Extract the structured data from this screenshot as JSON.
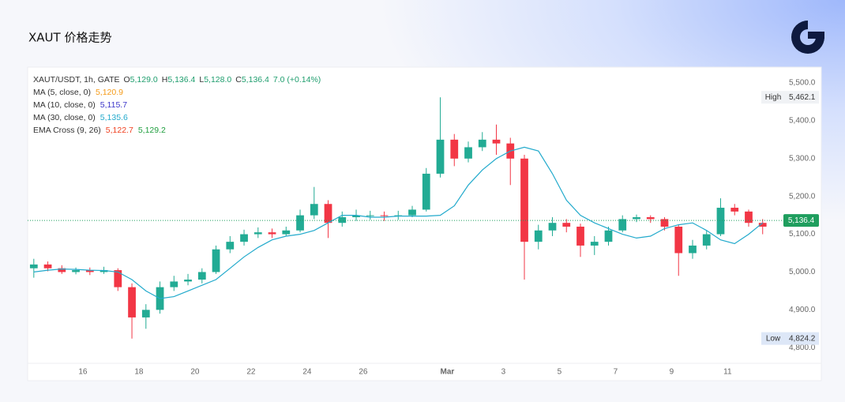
{
  "header": {
    "title": "XAUT 价格走势"
  },
  "chart_data": {
    "type": "candlestick",
    "legend": {
      "symbol": "XAUT/USDT, 1h, GATE",
      "ohlc": [
        {
          "key": "O",
          "value": "5,129.0"
        },
        {
          "key": "H",
          "value": "5,136.4"
        },
        {
          "key": "L",
          "value": "5,128.0"
        },
        {
          "key": "C",
          "value": "5,136.4"
        }
      ],
      "change": "7.0 (+0.14%)",
      "value_color": "#1f9e6e",
      "indicators": [
        {
          "name": "MA (5, close, 0)",
          "values": [
            {
              "text": "5,120.9",
              "color": "#f59a16"
            }
          ]
        },
        {
          "name": "MA (10, close, 0)",
          "values": [
            {
              "text": "5,115.7",
              "color": "#3b35c9"
            }
          ]
        },
        {
          "name": "MA (30, close, 0)",
          "values": [
            {
              "text": "5,135.6",
              "color": "#22aacc"
            }
          ]
        },
        {
          "name": "EMA Cross (9, 26)",
          "values": [
            {
              "text": "5,122.7",
              "color": "#f04020"
            },
            {
              "text": "5,129.2",
              "color": "#1f9e3e"
            }
          ]
        }
      ]
    },
    "x": [
      -1.75,
      -1.25,
      -0.75,
      -0.25,
      0.25,
      0.75,
      1.25,
      1.75,
      2.25,
      2.75,
      3.25,
      3.75,
      4.25,
      4.75,
      5.25,
      5.75,
      6.25,
      6.75,
      7.25,
      7.75,
      8.25,
      8.75,
      9.25,
      9.75,
      10.25,
      10.75,
      11.25,
      11.75,
      12.25,
      12.75,
      13.25,
      13.75,
      14.25,
      14.75,
      15.25,
      15.75,
      16.25,
      16.75,
      17.25,
      17.75,
      18.25,
      18.75,
      19.25,
      19.75,
      20.25,
      20.75,
      21.25,
      21.75,
      22.25,
      22.75,
      23.25,
      23.75,
      24.25
    ],
    "open": [
      5010,
      5020,
      5010,
      5000,
      5005,
      5000,
      5005,
      4960,
      4880,
      4900,
      4960,
      4975,
      4980,
      5000,
      5060,
      5080,
      5100,
      5105,
      5100,
      5110,
      5150,
      5180,
      5130,
      5145,
      5150,
      5150,
      5148,
      5150,
      5165,
      5260,
      5350,
      5300,
      5330,
      5350,
      5340,
      5300,
      5080,
      5110,
      5130,
      5120,
      5070,
      5080,
      5110,
      5140,
      5145,
      5140,
      5120,
      5050,
      5070,
      5100,
      5170,
      5160,
      5130
    ],
    "high": [
      5035,
      5028,
      5018,
      5012,
      5012,
      5014,
      5010,
      4970,
      4915,
      4975,
      4990,
      4995,
      5010,
      5070,
      5095,
      5112,
      5118,
      5115,
      5120,
      5165,
      5225,
      5190,
      5160,
      5165,
      5162,
      5160,
      5162,
      5175,
      5275,
      5462,
      5365,
      5345,
      5370,
      5390,
      5355,
      5310,
      5125,
      5145,
      5140,
      5128,
      5095,
      5120,
      5150,
      5152,
      5150,
      5145,
      5125,
      5085,
      5110,
      5195,
      5180,
      5165,
      5140
    ],
    "low": [
      4985,
      5002,
      4995,
      4994,
      4992,
      4995,
      4950,
      4824,
      4850,
      4890,
      4950,
      4965,
      4970,
      4995,
      5050,
      5070,
      5090,
      5090,
      5095,
      5105,
      5140,
      5090,
      5120,
      5135,
      5138,
      5135,
      5138,
      5145,
      5160,
      5250,
      5280,
      5290,
      5320,
      5310,
      5230,
      4980,
      5060,
      5095,
      5105,
      5040,
      5045,
      5070,
      5105,
      5132,
      5130,
      5110,
      4990,
      5035,
      5060,
      5095,
      5150,
      5120,
      5100
    ],
    "close": [
      5020,
      5010,
      5000,
      5005,
      5000,
      5005,
      4960,
      4880,
      4900,
      4960,
      4975,
      4980,
      5000,
      5060,
      5080,
      5100,
      5105,
      5100,
      5110,
      5150,
      5180,
      5130,
      5145,
      5150,
      5150,
      5148,
      5150,
      5165,
      5260,
      5350,
      5300,
      5330,
      5350,
      5340,
      5300,
      5080,
      5110,
      5130,
      5120,
      5070,
      5080,
      5110,
      5140,
      5145,
      5140,
      5120,
      5050,
      5070,
      5100,
      5170,
      5160,
      5130,
      5120
    ],
    "up_color": "#22ab94",
    "down_color": "#f23645",
    "lines": [
      {
        "color": "#22aacc",
        "values": [
          5000,
          5005,
          5008,
          5007,
          5005,
          5004,
          5000,
          4980,
          4950,
          4930,
          4935,
          4950,
          4965,
          4980,
          5010,
          5040,
          5065,
          5085,
          5095,
          5100,
          5110,
          5130,
          5150,
          5150,
          5145,
          5145,
          5148,
          5148,
          5148,
          5150,
          5175,
          5230,
          5270,
          5300,
          5320,
          5330,
          5320,
          5260,
          5190,
          5150,
          5130,
          5115,
          5100,
          5090,
          5095,
          5115,
          5125,
          5130,
          5110,
          5085,
          5075,
          5100,
          5130
        ]
      }
    ],
    "xlim": [
      -1.97,
      24.99
    ],
    "ylim": [
      4758.7,
      5541.8
    ],
    "xticks": [
      {
        "value": 0,
        "label": "16"
      },
      {
        "value": 2,
        "label": "18"
      },
      {
        "value": 4,
        "label": "20"
      },
      {
        "value": 6,
        "label": "22"
      },
      {
        "value": 8,
        "label": "24"
      },
      {
        "value": 10,
        "label": "26"
      },
      {
        "value": 13,
        "label": "Mar"
      },
      {
        "value": 15,
        "label": "3"
      },
      {
        "value": 17,
        "label": "5"
      },
      {
        "value": 19,
        "label": "7"
      },
      {
        "value": 21,
        "label": "9"
      },
      {
        "value": 23,
        "label": "11"
      }
    ],
    "yticks": [
      {
        "value": 4800,
        "label": "4,800.0"
      },
      {
        "value": 4900,
        "label": "4,900.0"
      },
      {
        "value": 5000,
        "label": "5,000.0"
      },
      {
        "value": 5100,
        "label": "5,100.0"
      },
      {
        "value": 5200,
        "label": "5,200.0"
      },
      {
        "value": 5300,
        "label": "5,300.0"
      },
      {
        "value": 5400,
        "label": "5,400.0"
      },
      {
        "value": 5500,
        "label": "5,500.0"
      }
    ],
    "grid": false,
    "last": {
      "value": 5136.4,
      "label": "5,136.4",
      "color": "#1f9e5e"
    },
    "high_mark": {
      "text": "High",
      "value": 5462.1,
      "label": "5,462.1"
    },
    "low_mark": {
      "text": "Low",
      "value": 4824.2,
      "label": "4,824.2"
    }
  }
}
